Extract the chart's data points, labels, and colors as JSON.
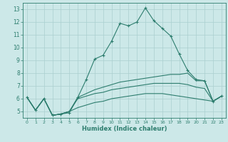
{
  "title": "",
  "xlabel": "Humidex (Indice chaleur)",
  "bg_color": "#cce8e8",
  "line_color": "#2d7d6e",
  "grid_color": "#aacfcf",
  "xlim": [
    -0.5,
    23.5
  ],
  "ylim": [
    4.5,
    13.5
  ],
  "xticks": [
    0,
    1,
    2,
    3,
    4,
    5,
    6,
    7,
    8,
    9,
    10,
    11,
    12,
    13,
    14,
    15,
    16,
    17,
    18,
    19,
    20,
    21,
    22,
    23
  ],
  "yticks": [
    5,
    6,
    7,
    8,
    9,
    10,
    11,
    12,
    13
  ],
  "line1_x": [
    0,
    1,
    2,
    3,
    4,
    5,
    6,
    7,
    8,
    9,
    10,
    11,
    12,
    13,
    14,
    15,
    16,
    17,
    18,
    19,
    20,
    21,
    22,
    23
  ],
  "line1_y": [
    6.1,
    5.1,
    6.0,
    4.7,
    4.8,
    4.9,
    6.1,
    7.5,
    9.1,
    9.4,
    10.5,
    11.9,
    11.7,
    12.0,
    13.1,
    12.1,
    11.5,
    10.9,
    9.5,
    8.2,
    7.5,
    7.4,
    5.8,
    6.2
  ],
  "line2_x": [
    0,
    1,
    2,
    3,
    4,
    5,
    6,
    7,
    8,
    9,
    10,
    11,
    12,
    13,
    14,
    15,
    16,
    17,
    18,
    19,
    20,
    21,
    22,
    23
  ],
  "line2_y": [
    6.1,
    5.1,
    6.0,
    4.7,
    4.8,
    5.0,
    6.1,
    6.4,
    6.7,
    6.9,
    7.1,
    7.3,
    7.4,
    7.5,
    7.6,
    7.7,
    7.8,
    7.9,
    7.9,
    8.0,
    7.4,
    7.4,
    5.8,
    6.2
  ],
  "line3_x": [
    0,
    1,
    2,
    3,
    4,
    5,
    6,
    7,
    8,
    9,
    10,
    11,
    12,
    13,
    14,
    15,
    16,
    17,
    18,
    19,
    20,
    21,
    22,
    23
  ],
  "line3_y": [
    6.1,
    5.1,
    6.0,
    4.7,
    4.8,
    5.0,
    6.0,
    6.2,
    6.4,
    6.5,
    6.7,
    6.8,
    6.9,
    7.0,
    7.1,
    7.2,
    7.2,
    7.2,
    7.2,
    7.1,
    6.9,
    6.8,
    5.8,
    6.2
  ],
  "line4_x": [
    0,
    1,
    2,
    3,
    4,
    5,
    6,
    7,
    8,
    9,
    10,
    11,
    12,
    13,
    14,
    15,
    16,
    17,
    18,
    19,
    20,
    21,
    22,
    23
  ],
  "line4_y": [
    6.1,
    5.1,
    6.0,
    4.7,
    4.8,
    5.0,
    5.3,
    5.5,
    5.7,
    5.8,
    6.0,
    6.1,
    6.2,
    6.3,
    6.4,
    6.4,
    6.4,
    6.3,
    6.2,
    6.1,
    6.0,
    5.9,
    5.8,
    6.2
  ]
}
